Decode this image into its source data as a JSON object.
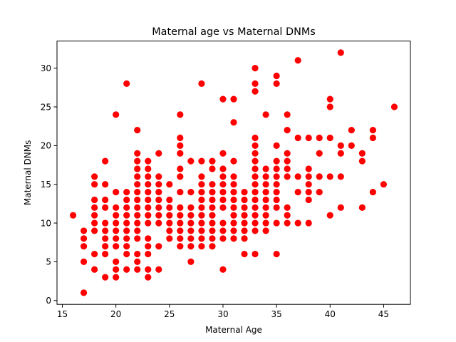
{
  "chart_data": {
    "type": "scatter",
    "title": "Maternal age vs Maternal DNMs",
    "xlabel": "Maternal Age",
    "ylabel": "Maternal DNMs",
    "xlim": [
      14.5,
      47.5
    ],
    "ylim": [
      -0.5,
      33.5
    ],
    "xticks": [
      15,
      20,
      25,
      30,
      35,
      40,
      45
    ],
    "yticks": [
      0,
      5,
      10,
      15,
      20,
      25,
      30
    ],
    "grid": false,
    "marker_color": "#ff0000",
    "points": [
      [
        16,
        11
      ],
      [
        17,
        1
      ],
      [
        17,
        5
      ],
      [
        17,
        7
      ],
      [
        17,
        8
      ],
      [
        17,
        9
      ],
      [
        18,
        4
      ],
      [
        18,
        6
      ],
      [
        18,
        9
      ],
      [
        18,
        10
      ],
      [
        18,
        11
      ],
      [
        18,
        12
      ],
      [
        18,
        13
      ],
      [
        18,
        15
      ],
      [
        18,
        16
      ],
      [
        19,
        3
      ],
      [
        19,
        6
      ],
      [
        19,
        7
      ],
      [
        19,
        8
      ],
      [
        19,
        9
      ],
      [
        19,
        10
      ],
      [
        19,
        12
      ],
      [
        19,
        13
      ],
      [
        19,
        15
      ],
      [
        19,
        18
      ],
      [
        20,
        3
      ],
      [
        20,
        4
      ],
      [
        20,
        5
      ],
      [
        20,
        7
      ],
      [
        20,
        8
      ],
      [
        20,
        9
      ],
      [
        20,
        10
      ],
      [
        20,
        11
      ],
      [
        20,
        12
      ],
      [
        20,
        14
      ],
      [
        20,
        24
      ],
      [
        21,
        4
      ],
      [
        21,
        6
      ],
      [
        21,
        7
      ],
      [
        21,
        8
      ],
      [
        21,
        9
      ],
      [
        21,
        10
      ],
      [
        21,
        11
      ],
      [
        21,
        12
      ],
      [
        21,
        13
      ],
      [
        21,
        14
      ],
      [
        21,
        28
      ],
      [
        22,
        4
      ],
      [
        22,
        5
      ],
      [
        22,
        6
      ],
      [
        22,
        8
      ],
      [
        22,
        9
      ],
      [
        22,
        10
      ],
      [
        22,
        11
      ],
      [
        22,
        12
      ],
      [
        22,
        13
      ],
      [
        22,
        14
      ],
      [
        22,
        15
      ],
      [
        22,
        16
      ],
      [
        22,
        17
      ],
      [
        22,
        18
      ],
      [
        22,
        19
      ],
      [
        22,
        22
      ],
      [
        23,
        3
      ],
      [
        23,
        4
      ],
      [
        23,
        6
      ],
      [
        23,
        7
      ],
      [
        23,
        8
      ],
      [
        23,
        10
      ],
      [
        23,
        11
      ],
      [
        23,
        12
      ],
      [
        23,
        13
      ],
      [
        23,
        14
      ],
      [
        23,
        15
      ],
      [
        23,
        16
      ],
      [
        23,
        17
      ],
      [
        23,
        18
      ],
      [
        24,
        4
      ],
      [
        24,
        7
      ],
      [
        24,
        10
      ],
      [
        24,
        11
      ],
      [
        24,
        12
      ],
      [
        24,
        13
      ],
      [
        24,
        14
      ],
      [
        24,
        15
      ],
      [
        24,
        16
      ],
      [
        24,
        19
      ],
      [
        25,
        8
      ],
      [
        25,
        9
      ],
      [
        25,
        10
      ],
      [
        25,
        11
      ],
      [
        25,
        12
      ],
      [
        25,
        13
      ],
      [
        25,
        15
      ],
      [
        26,
        7
      ],
      [
        26,
        8
      ],
      [
        26,
        9
      ],
      [
        26,
        10
      ],
      [
        26,
        11
      ],
      [
        26,
        12
      ],
      [
        26,
        14
      ],
      [
        26,
        16
      ],
      [
        26,
        17
      ],
      [
        26,
        19
      ],
      [
        26,
        20
      ],
      [
        26,
        21
      ],
      [
        26,
        24
      ],
      [
        27,
        5
      ],
      [
        27,
        7
      ],
      [
        27,
        8
      ],
      [
        27,
        9
      ],
      [
        27,
        10
      ],
      [
        27,
        11
      ],
      [
        27,
        12
      ],
      [
        27,
        14
      ],
      [
        27,
        18
      ],
      [
        28,
        7
      ],
      [
        28,
        8
      ],
      [
        28,
        9
      ],
      [
        28,
        10
      ],
      [
        28,
        11
      ],
      [
        28,
        12
      ],
      [
        28,
        13
      ],
      [
        28,
        14
      ],
      [
        28,
        15
      ],
      [
        28,
        16
      ],
      [
        28,
        18
      ],
      [
        28,
        28
      ],
      [
        29,
        7
      ],
      [
        29,
        8
      ],
      [
        29,
        9
      ],
      [
        29,
        10
      ],
      [
        29,
        11
      ],
      [
        29,
        12
      ],
      [
        29,
        13
      ],
      [
        29,
        14
      ],
      [
        29,
        15
      ],
      [
        29,
        17
      ],
      [
        29,
        18
      ],
      [
        30,
        4
      ],
      [
        30,
        8
      ],
      [
        30,
        9
      ],
      [
        30,
        10
      ],
      [
        30,
        12
      ],
      [
        30,
        13
      ],
      [
        30,
        14
      ],
      [
        30,
        15
      ],
      [
        30,
        16
      ],
      [
        30,
        17
      ],
      [
        30,
        19
      ],
      [
        30,
        26
      ],
      [
        31,
        8
      ],
      [
        31,
        9
      ],
      [
        31,
        10
      ],
      [
        31,
        11
      ],
      [
        31,
        12
      ],
      [
        31,
        13
      ],
      [
        31,
        14
      ],
      [
        31,
        15
      ],
      [
        31,
        16
      ],
      [
        31,
        18
      ],
      [
        31,
        23
      ],
      [
        31,
        26
      ],
      [
        32,
        6
      ],
      [
        32,
        8
      ],
      [
        32,
        9
      ],
      [
        32,
        10
      ],
      [
        32,
        11
      ],
      [
        32,
        12
      ],
      [
        32,
        13
      ],
      [
        32,
        14
      ],
      [
        33,
        6
      ],
      [
        33,
        9
      ],
      [
        33,
        10
      ],
      [
        33,
        11
      ],
      [
        33,
        12
      ],
      [
        33,
        13
      ],
      [
        33,
        14
      ],
      [
        33,
        15
      ],
      [
        33,
        16
      ],
      [
        33,
        17
      ],
      [
        33,
        18
      ],
      [
        33,
        19
      ],
      [
        33,
        20
      ],
      [
        33,
        21
      ],
      [
        33,
        27
      ],
      [
        33,
        28
      ],
      [
        33,
        30
      ],
      [
        34,
        9
      ],
      [
        34,
        10
      ],
      [
        34,
        11
      ],
      [
        34,
        12
      ],
      [
        34,
        13
      ],
      [
        34,
        14
      ],
      [
        34,
        15
      ],
      [
        34,
        16
      ],
      [
        34,
        17
      ],
      [
        34,
        24
      ],
      [
        35,
        6
      ],
      [
        35,
        10
      ],
      [
        35,
        12
      ],
      [
        35,
        13
      ],
      [
        35,
        14
      ],
      [
        35,
        15
      ],
      [
        35,
        16
      ],
      [
        35,
        17
      ],
      [
        35,
        18
      ],
      [
        35,
        20
      ],
      [
        35,
        28
      ],
      [
        35,
        29
      ],
      [
        36,
        10
      ],
      [
        36,
        11
      ],
      [
        36,
        12
      ],
      [
        36,
        16
      ],
      [
        36,
        17
      ],
      [
        36,
        18
      ],
      [
        36,
        19
      ],
      [
        36,
        22
      ],
      [
        36,
        24
      ],
      [
        37,
        10
      ],
      [
        37,
        14
      ],
      [
        37,
        16
      ],
      [
        37,
        21
      ],
      [
        37,
        31
      ],
      [
        38,
        10
      ],
      [
        38,
        13
      ],
      [
        38,
        14
      ],
      [
        38,
        15
      ],
      [
        38,
        16
      ],
      [
        38,
        17
      ],
      [
        38,
        21
      ],
      [
        39,
        14
      ],
      [
        39,
        16
      ],
      [
        39,
        19
      ],
      [
        39,
        21
      ],
      [
        40,
        11
      ],
      [
        40,
        16
      ],
      [
        40,
        21
      ],
      [
        40,
        25
      ],
      [
        40,
        26
      ],
      [
        41,
        12
      ],
      [
        41,
        16
      ],
      [
        41,
        19
      ],
      [
        41,
        20
      ],
      [
        41,
        32
      ],
      [
        42,
        20
      ],
      [
        42,
        22
      ],
      [
        43,
        12
      ],
      [
        43,
        18
      ],
      [
        43,
        19
      ],
      [
        44,
        14
      ],
      [
        44,
        21
      ],
      [
        44,
        22
      ],
      [
        45,
        15
      ],
      [
        46,
        25
      ]
    ]
  }
}
